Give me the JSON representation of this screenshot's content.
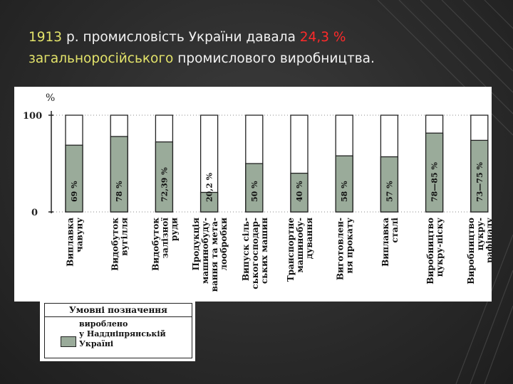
{
  "title": {
    "year": "1913",
    "part1": " р. промисловість України давала ",
    "percent": "24,3 %",
    "part2": "загальноросійського",
    "part3": " промислового виробництва."
  },
  "colors": {
    "highlight_yellow": "#e3e36a",
    "highlight_red": "#ff2a2a",
    "bar_fill": "#9aab9a"
  },
  "legend": {
    "title": "Умовні позначення",
    "label": "вироблено\nу Наддніпрянській\nУкраїні"
  },
  "chart_data": {
    "type": "bar",
    "ylabel": "%",
    "ylim": [
      0,
      100
    ],
    "yticks": [
      "100",
      "0"
    ],
    "categories": [
      [
        "Виплавка",
        "чавуну"
      ],
      [
        "Видобуток",
        "вугілля"
      ],
      [
        "Видобуток",
        "залізної",
        "руди"
      ],
      [
        "Продукція",
        "машинобуду-",
        "вання та мета-",
        "лообробки"
      ],
      [
        "Випуск сіль-",
        "ськогосподар-",
        "ських машин"
      ],
      [
        "Транспортне",
        "машинобу-",
        "дування"
      ],
      [
        "Виготовлен-",
        "ня прокату"
      ],
      [
        "Виплавка",
        "сталі"
      ],
      [
        "Виробництво",
        "цукру-піску"
      ],
      [
        "Виробництво",
        "цукру-",
        "рафінаду"
      ]
    ],
    "values": [
      69,
      78,
      72.39,
      20.2,
      50,
      40,
      58,
      57,
      81.5,
      74
    ],
    "labels": [
      "69 %",
      "78 %",
      "72,39 %",
      "20,2 %",
      "50 %",
      "40 %",
      "58 %",
      "57 %",
      "78—85 %",
      "73—75 %"
    ]
  }
}
